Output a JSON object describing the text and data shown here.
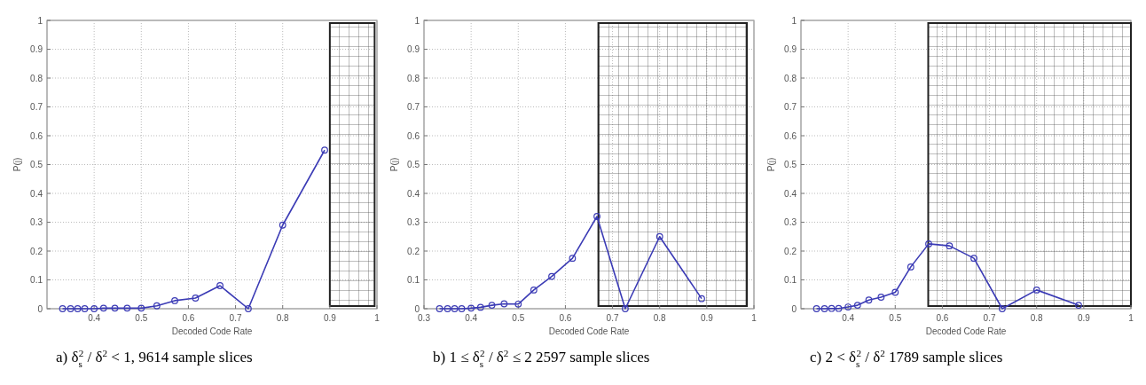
{
  "chart_data": [
    {
      "type": "line",
      "title": "a)  δ$_{s}$$^{2}$ / δ$^{2}$ < 1,  9614 sample slices",
      "xlabel": "Decoded Code Rate",
      "ylabel": "P(j)",
      "x": [
        0.333,
        0.35,
        0.365,
        0.38,
        0.4,
        0.42,
        0.444,
        0.47,
        0.5,
        0.533,
        0.571,
        0.615,
        0.667,
        0.727,
        0.8,
        0.889
      ],
      "series": [
        {
          "color": "#3b3bb5",
          "values": [
            0,
            0,
            0,
            0,
            0,
            0.002,
            0.002,
            0.002,
            0.002,
            0.01,
            0.028,
            0.037,
            0.08,
            0,
            0.29,
            0.55
          ]
        }
      ],
      "bands": [
        {
          "axis": "x",
          "from": 0.9,
          "to": 0.995,
          "color": "#222222"
        }
      ],
      "xlim": [
        0.3,
        1
      ],
      "xticks": [
        0.4,
        0.5,
        0.6,
        0.7,
        0.8,
        0.9,
        1
      ],
      "ylim": [
        0,
        1
      ],
      "yticks": [
        0,
        0.1,
        0.2,
        0.3,
        0.4,
        0.5,
        0.6,
        0.7,
        0.8,
        0.9,
        1
      ],
      "grid": true,
      "marker": "circle",
      "line_style": "solid"
    },
    {
      "type": "line",
      "title": "b)  1 ≤ δ$_{s}$$^{2}$ / δ$^{2}$ ≤ 2   2597 sample slices",
      "xlabel": "Decoded Code Rate",
      "ylabel": "P(j)",
      "x": [
        0.333,
        0.35,
        0.365,
        0.38,
        0.4,
        0.42,
        0.444,
        0.47,
        0.5,
        0.533,
        0.571,
        0.615,
        0.667,
        0.727,
        0.8,
        0.889
      ],
      "series": [
        {
          "color": "#3b3bb5",
          "values": [
            0,
            0,
            0,
            0,
            0.002,
            0.005,
            0.012,
            0.017,
            0.016,
            0.065,
            0.112,
            0.175,
            0.32,
            0,
            0.25,
            0.035
          ]
        }
      ],
      "bands": [
        {
          "axis": "x",
          "from": 0.67,
          "to": 0.985,
          "color": "#222222"
        }
      ],
      "xlim": [
        0.3,
        1
      ],
      "xticks": [
        0.3,
        0.4,
        0.5,
        0.6,
        0.7,
        0.8,
        0.9,
        1
      ],
      "ylim": [
        0,
        1
      ],
      "yticks": [
        0,
        0.1,
        0.2,
        0.3,
        0.4,
        0.5,
        0.6,
        0.7,
        0.8,
        0.9,
        1
      ],
      "grid": true,
      "marker": "circle",
      "line_style": "solid"
    },
    {
      "type": "line",
      "title": "c)  2 < δ$_{s}$$^{2}$ / δ$^{2}$    1789 sample slices",
      "xlabel": "Decoded Code Rate",
      "ylabel": "P(j)",
      "x": [
        0.333,
        0.35,
        0.365,
        0.38,
        0.4,
        0.42,
        0.444,
        0.47,
        0.5,
        0.533,
        0.571,
        0.615,
        0.667,
        0.727,
        0.8,
        0.889
      ],
      "series": [
        {
          "color": "#3b3bb5",
          "values": [
            0,
            0,
            0.001,
            0.001,
            0.006,
            0.012,
            0.03,
            0.04,
            0.057,
            0.145,
            0.225,
            0.218,
            0.175,
            0,
            0.065,
            0.012
          ]
        }
      ],
      "bands": [
        {
          "axis": "x",
          "from": 0.57,
          "to": 1.0,
          "color": "#222222"
        }
      ],
      "xlim": [
        0.3,
        1
      ],
      "xticks": [
        0.4,
        0.5,
        0.6,
        0.7,
        0.8,
        0.9,
        1
      ],
      "ylim": [
        0,
        1
      ],
      "yticks": [
        0,
        0.1,
        0.2,
        0.3,
        0.4,
        0.5,
        0.6,
        0.7,
        0.8,
        0.9,
        1
      ],
      "grid": true,
      "marker": "circle",
      "line_style": "solid"
    }
  ]
}
